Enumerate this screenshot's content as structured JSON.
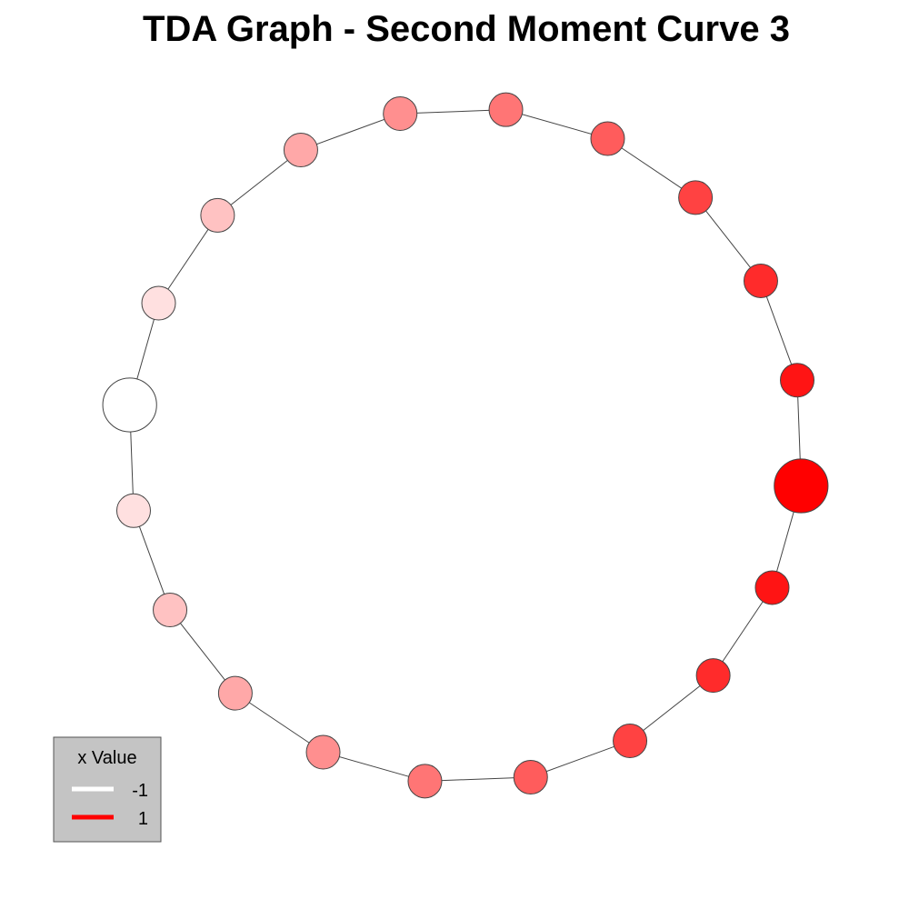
{
  "title": "TDA Graph - Second Moment Curve 3",
  "legend": {
    "title": "x Value",
    "entries": [
      {
        "label": "-1",
        "color": "#ffffff"
      },
      {
        "label": "1",
        "color": "#ff0000"
      }
    ]
  },
  "color_scale": {
    "low": "#ffffff",
    "high": "#ff0000",
    "min": -1,
    "max": 1
  },
  "graph": {
    "node_values": [
      -1.0,
      -0.76,
      -0.52,
      -0.32,
      -0.12,
      0.08,
      0.28,
      0.48,
      0.66,
      0.84,
      1.0,
      0.84,
      0.66,
      0.48,
      0.28,
      0.08,
      -0.12,
      -0.32,
      -0.52,
      -0.76
    ],
    "node_sizes": [
      1.6,
      1.0,
      1.0,
      1.0,
      1.0,
      1.0,
      1.0,
      1.0,
      1.0,
      1.0,
      1.6,
      1.0,
      1.0,
      1.0,
      1.0,
      1.0,
      1.0,
      1.0,
      1.0,
      1.0
    ],
    "edges": [
      [
        0,
        1
      ],
      [
        1,
        2
      ],
      [
        2,
        3
      ],
      [
        3,
        4
      ],
      [
        4,
        5
      ],
      [
        5,
        6
      ],
      [
        6,
        7
      ],
      [
        7,
        8
      ],
      [
        8,
        9
      ],
      [
        9,
        10
      ],
      [
        10,
        11
      ],
      [
        11,
        12
      ],
      [
        12,
        13
      ],
      [
        13,
        14
      ],
      [
        14,
        15
      ],
      [
        15,
        16
      ],
      [
        16,
        17
      ],
      [
        17,
        18
      ],
      [
        18,
        19
      ],
      [
        19,
        0
      ]
    ]
  }
}
